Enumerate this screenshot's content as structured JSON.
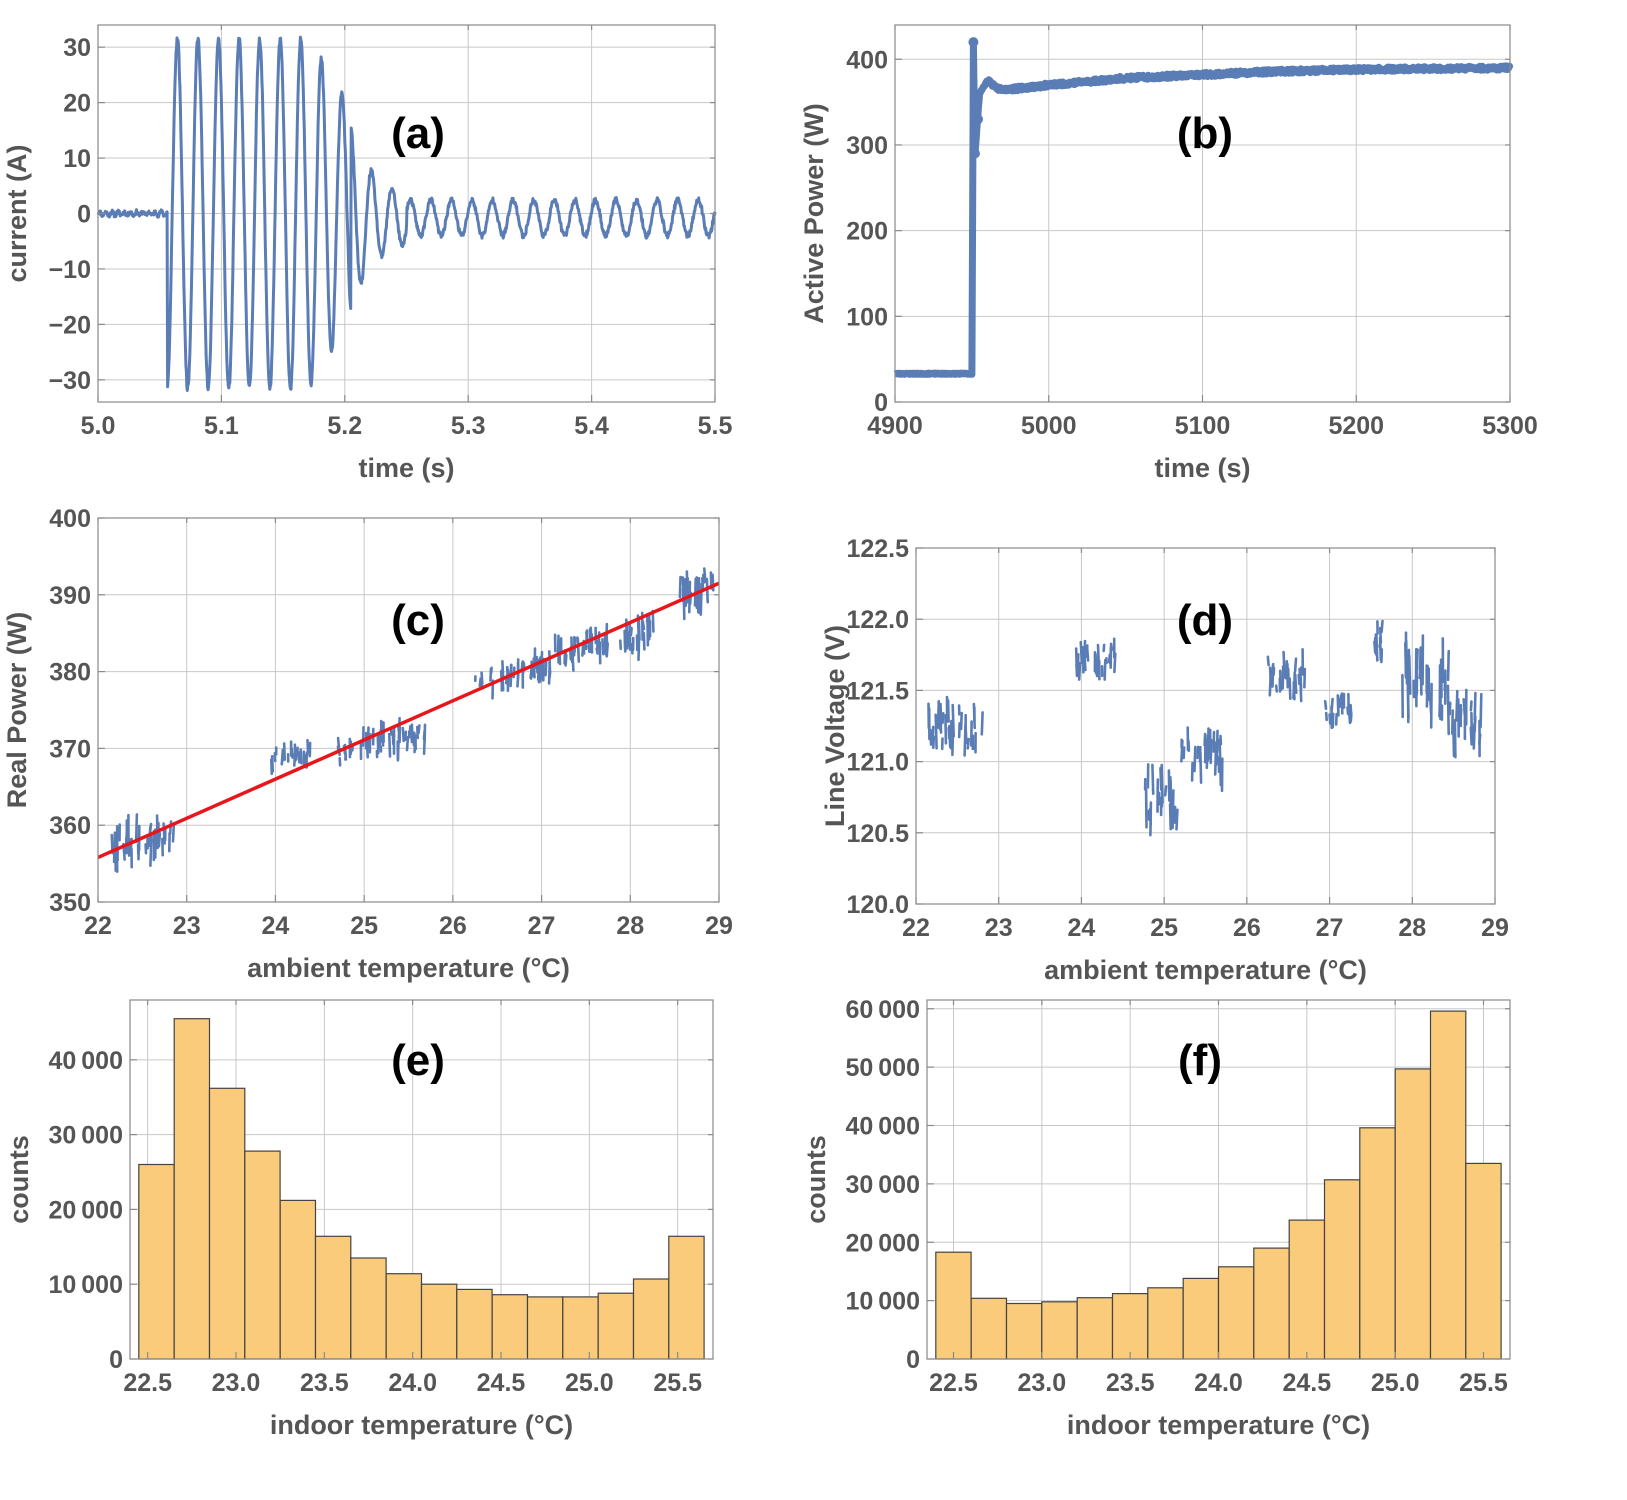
{
  "colors": {
    "series": "#5B7DB5",
    "fit": "#E8161A",
    "hist_fill": "#F9CB7A",
    "hist_edge": "#444444",
    "grid": "#c8c8c8",
    "text": "#555555"
  },
  "chart_data": [
    {
      "id": "a",
      "type": "line",
      "panel_label": "(a)",
      "xlabel": "time (s)",
      "ylabel": "current (A)",
      "xlim": [
        5.0,
        5.5
      ],
      "ylim": [
        -34,
        34
      ],
      "xticks": [
        5.0,
        5.1,
        5.2,
        5.3,
        5.4,
        5.5
      ],
      "xtick_labels": [
        "5.0",
        "5.1",
        "5.2",
        "5.3",
        "5.4",
        "5.5"
      ],
      "yticks": [
        -30,
        -20,
        -10,
        0,
        10,
        20,
        30
      ],
      "ytick_labels": [
        "−30",
        "−20",
        "−10",
        "0",
        "10",
        "20",
        "30"
      ],
      "series": [
        {
          "x": [
            5.0,
            5.055,
            5.056,
            5.066,
            5.2,
            5.22,
            5.5
          ],
          "y": [
            0,
            0,
            -24,
            31,
            21,
            10,
            3
          ]
        }
      ]
    },
    {
      "id": "b",
      "type": "line",
      "panel_label": "(b)",
      "xlabel": "time (s)",
      "ylabel": "Active Power (W)",
      "xlim": [
        4900,
        5300
      ],
      "ylim": [
        0,
        440
      ],
      "xticks": [
        4900,
        5000,
        5100,
        5200,
        5300
      ],
      "xtick_labels": [
        "4900",
        "5000",
        "5100",
        "5200",
        "5300"
      ],
      "yticks": [
        0,
        100,
        200,
        300,
        400
      ],
      "ytick_labels": [
        "0",
        "100",
        "200",
        "300",
        "400"
      ],
      "series": [
        {
          "x": [
            4900,
            4950,
            4951,
            4952,
            4955,
            4960,
            4967,
            4975,
            5000,
            5050,
            5100,
            5150,
            5200,
            5250,
            5300
          ],
          "y": [
            33,
            33,
            420,
            290,
            360,
            375,
            366,
            365,
            370,
            378,
            382,
            386,
            388,
            389,
            390
          ]
        }
      ]
    },
    {
      "id": "c",
      "type": "scatter",
      "panel_label": "(c)",
      "xlabel": "ambient temperature (°C)",
      "ylabel": "Real Power (W)",
      "xlim": [
        22,
        29
      ],
      "ylim": [
        350,
        400
      ],
      "xticks": [
        22,
        23,
        24,
        25,
        26,
        27,
        28,
        29
      ],
      "xtick_labels": [
        "22",
        "23",
        "24",
        "25",
        "26",
        "27",
        "28",
        "29"
      ],
      "yticks": [
        350,
        360,
        370,
        380,
        390,
        400
      ],
      "ytick_labels": [
        "350",
        "360",
        "370",
        "380",
        "390",
        "400"
      ],
      "clusters": [
        {
          "x0": 22.15,
          "x1": 22.85,
          "y_center": 357.5,
          "y_spread": 4.5
        },
        {
          "x0": 23.95,
          "x1": 24.4,
          "y_center": 371,
          "y_spread": 2.2
        },
        {
          "x0": 24.7,
          "x1": 25.7,
          "y_center": 369.5,
          "y_spread": 3
        },
        {
          "x0": 26.25,
          "x1": 27.1,
          "y_center": 379.5,
          "y_spread": 2.8
        },
        {
          "x0": 27.1,
          "x1": 27.75,
          "y_center": 382.5,
          "y_spread": 3
        },
        {
          "x0": 27.85,
          "x1": 28.3,
          "y_center": 383,
          "y_spread": 4
        },
        {
          "x0": 28.5,
          "x1": 28.95,
          "y_center": 391,
          "y_spread": 4.5
        }
      ],
      "fit_line": {
        "x": [
          22,
          29
        ],
        "y": [
          355.8,
          391.5
        ]
      }
    },
    {
      "id": "d",
      "type": "scatter",
      "panel_label": "(d)",
      "xlabel": "ambient temperature (°C)",
      "ylabel": "Line Voltage (V)",
      "xlim": [
        22,
        29
      ],
      "ylim": [
        120.0,
        122.5
      ],
      "xticks": [
        22,
        23,
        24,
        25,
        26,
        27,
        28,
        29
      ],
      "xtick_labels": [
        "22",
        "23",
        "24",
        "25",
        "26",
        "27",
        "28",
        "29"
      ],
      "yticks": [
        120.0,
        120.5,
        121.0,
        121.5,
        122.0,
        122.5
      ],
      "ytick_labels": [
        "120.0",
        "120.5",
        "121.0",
        "121.5",
        "122.0",
        "122.5"
      ],
      "clusters": [
        {
          "x0": 22.15,
          "x1": 22.8,
          "y_center": 121.25,
          "y_spread": 0.25
        },
        {
          "x0": 23.9,
          "x1": 24.4,
          "y_center": 121.72,
          "y_spread": 0.15
        },
        {
          "x0": 24.75,
          "x1": 25.15,
          "y_center": 120.75,
          "y_spread": 0.28
        },
        {
          "x0": 25.2,
          "x1": 25.7,
          "y_center": 121.05,
          "y_spread": 0.25
        },
        {
          "x0": 26.25,
          "x1": 26.8,
          "y_center": 121.6,
          "y_spread": 0.18
        },
        {
          "x0": 26.95,
          "x1": 27.3,
          "y_center": 121.35,
          "y_spread": 0.15
        },
        {
          "x0": 27.5,
          "x1": 27.7,
          "y_center": 121.85,
          "y_spread": 0.18
        },
        {
          "x0": 27.85,
          "x1": 28.45,
          "y_center": 121.55,
          "y_spread": 0.35
        },
        {
          "x0": 28.45,
          "x1": 28.85,
          "y_center": 121.25,
          "y_spread": 0.28
        }
      ]
    },
    {
      "id": "e",
      "type": "bar",
      "panel_label": "(e)",
      "xlabel": "indoor temperature (°C)",
      "ylabel": "counts",
      "xlim": [
        22.4,
        25.7
      ],
      "ylim": [
        0,
        48000
      ],
      "xticks": [
        22.5,
        23.0,
        23.5,
        24.0,
        24.5,
        25.0,
        25.5
      ],
      "xtick_labels": [
        "22.5",
        "23.0",
        "23.5",
        "24.0",
        "24.5",
        "25.0",
        "25.5"
      ],
      "yticks": [
        0,
        10000,
        20000,
        30000,
        40000
      ],
      "ytick_labels": [
        "0",
        "10 000",
        "20 000",
        "30 000",
        "40 000"
      ],
      "bin_start": 22.45,
      "bin_width": 0.2,
      "values": [
        26000,
        45500,
        36200,
        27800,
        21200,
        16400,
        13500,
        11400,
        10000,
        9300,
        8600,
        8300,
        8300,
        8800,
        10700,
        16400
      ]
    },
    {
      "id": "f",
      "type": "bar",
      "panel_label": "(f)",
      "xlabel": "indoor temperature (°C)",
      "ylabel": "counts",
      "xlim": [
        22.35,
        25.65
      ],
      "ylim": [
        0,
        61500
      ],
      "xticks": [
        22.5,
        23.0,
        23.5,
        24.0,
        24.5,
        25.0,
        25.5
      ],
      "xtick_labels": [
        "22.5",
        "23.0",
        "23.5",
        "24.0",
        "24.5",
        "25.0",
        "25.5"
      ],
      "yticks": [
        0,
        10000,
        20000,
        30000,
        40000,
        50000,
        60000
      ],
      "ytick_labels": [
        "0",
        "10 000",
        "20 000",
        "30 000",
        "40 000",
        "50 000",
        "60 000"
      ],
      "bin_start": 22.4,
      "bin_width": 0.2,
      "values": [
        18300,
        10400,
        9500,
        9800,
        10500,
        11200,
        12200,
        13800,
        15800,
        19000,
        23800,
        30700,
        39600,
        49700,
        59600,
        33500
      ]
    }
  ]
}
